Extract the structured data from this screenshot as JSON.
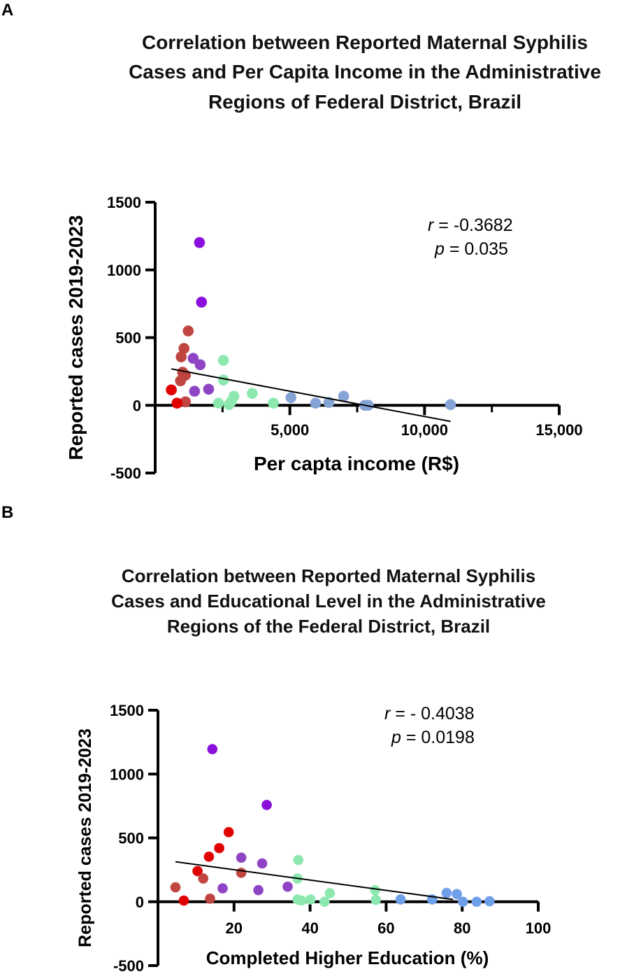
{
  "chart_data": [
    {
      "type": "scatter",
      "panel_label": "A",
      "title": [
        "Correlation between Reported Maternal Syphilis",
        "Cases and Per Capita Income in the Administrative",
        "Regions of Federal District, Brazil"
      ],
      "xlabel": "Per capta income (R$)",
      "ylabel": "Reported cases 2019-2023",
      "xlim": [
        0,
        15000
      ],
      "ylim": [
        -500,
        1500
      ],
      "xticks": [
        5000,
        10000,
        15000
      ],
      "xtick_labels": [
        "5,000",
        "10,000",
        "15,000"
      ],
      "xminor": [
        2500,
        7500,
        12500
      ],
      "yticks": [
        1500,
        1000,
        500,
        0,
        -500
      ],
      "ytick_labels": [
        "1500",
        "1000",
        "500",
        "0",
        "-500"
      ],
      "annotation": {
        "r_sym": "r",
        "r_val": " = -0.3682",
        "p_sym": "p",
        "p_val": " = 0.035"
      },
      "fit_line": {
        "x": [
          600,
          10966
        ],
        "y": [
          269,
          -119
        ]
      },
      "series": [
        {
          "name": "dark-purple",
          "color": "#8b0fdc",
          "points": [
            [
              1645,
              1202
            ],
            [
              1720,
              762
            ]
          ]
        },
        {
          "name": "brown",
          "color": "#c0443f",
          "points": [
            [
              1227,
              549
            ],
            [
              1070,
              420
            ],
            [
              966,
              358
            ],
            [
              1018,
              244
            ],
            [
              1123,
              223
            ],
            [
              940,
              181
            ],
            [
              1123,
              26
            ]
          ]
        },
        {
          "name": "red",
          "color": "#e00000",
          "points": [
            [
              600,
              114
            ],
            [
              810,
              16
            ]
          ]
        },
        {
          "name": "purple",
          "color": "#8e44c4",
          "points": [
            [
              1410,
              347
            ],
            [
              1671,
              300
            ],
            [
              1462,
              104
            ],
            [
              1984,
              119
            ]
          ]
        },
        {
          "name": "green",
          "color": "#8de8b0",
          "points": [
            [
              2533,
              332
            ],
            [
              2533,
              187
            ],
            [
              2350,
              16
            ],
            [
              2742,
              5
            ],
            [
              2924,
              67
            ],
            [
              2820,
              26
            ],
            [
              3603,
              88
            ],
            [
              4386,
              16
            ]
          ]
        },
        {
          "name": "blue",
          "color": "#86a3d6",
          "points": [
            [
              5039,
              57
            ],
            [
              5953,
              16
            ],
            [
              6449,
              21
            ],
            [
              6997,
              67
            ],
            [
              7781,
              0
            ],
            [
              7911,
              0
            ],
            [
              10966,
              5
            ]
          ]
        }
      ]
    },
    {
      "type": "scatter",
      "panel_label": "B",
      "title": [
        "Correlation between Reported Maternal Syphilis",
        "Cases and Educational Level in the Administrative",
        "Regions of the Federal District, Brazil"
      ],
      "xlabel": "Completed Higher Education (%)",
      "ylabel": "Reported cases 2019-2023",
      "xlim": [
        0,
        100
      ],
      "ylim": [
        -500,
        1500
      ],
      "xticks": [
        20,
        40,
        60,
        80,
        100
      ],
      "xtick_labels": [
        "20",
        "40",
        "60",
        "80",
        "100"
      ],
      "xminor": [],
      "yticks": [
        1500,
        1000,
        500,
        0,
        -500
      ],
      "ytick_labels": [
        "1500",
        "1000",
        "500",
        "0",
        "-500"
      ],
      "annotation": {
        "r_sym": "r",
        "r_val": " = - 0.4038",
        "p_sym": "p",
        "p_val": " = 0.0198"
      },
      "fit_line": {
        "x": [
          4.6,
          77.6
        ],
        "y": [
          313,
          18
        ]
      },
      "series": [
        {
          "name": "dark-purple",
          "color": "#8b0fdc",
          "points": [
            [
              14.3,
              1195
            ],
            [
              28.6,
              758
            ]
          ]
        },
        {
          "name": "red",
          "color": "#e00000",
          "points": [
            [
              18.6,
              545
            ],
            [
              16.1,
              420
            ],
            [
              13.4,
              353
            ],
            [
              10.4,
              240
            ],
            [
              6.8,
              9
            ]
          ]
        },
        {
          "name": "brown",
          "color": "#c0443f",
          "points": [
            [
              4.6,
              113
            ],
            [
              11.9,
              182
            ],
            [
              21.9,
              227
            ],
            [
              13.7,
              24
            ]
          ]
        },
        {
          "name": "purple",
          "color": "#8e44c4",
          "points": [
            [
              21.9,
              345
            ],
            [
              27.4,
              300
            ],
            [
              17.0,
              105
            ],
            [
              26.4,
              91
            ],
            [
              34.1,
              118
            ]
          ]
        },
        {
          "name": "green",
          "color": "#8de8b0",
          "points": [
            [
              36.9,
              327
            ],
            [
              36.7,
              182
            ],
            [
              36.7,
              18
            ],
            [
              37.7,
              9
            ],
            [
              40.1,
              18
            ],
            [
              43.8,
              0
            ],
            [
              45.2,
              67
            ],
            [
              57.1,
              91
            ],
            [
              57.3,
              15
            ]
          ]
        },
        {
          "name": "blue",
          "color": "#6f9ee8",
          "points": [
            [
              63.8,
              18
            ],
            [
              72.1,
              18
            ],
            [
              75.9,
              69
            ],
            [
              78.6,
              60
            ],
            [
              80.2,
              0
            ],
            [
              83.8,
              0
            ],
            [
              87.2,
              4
            ]
          ]
        }
      ]
    }
  ]
}
